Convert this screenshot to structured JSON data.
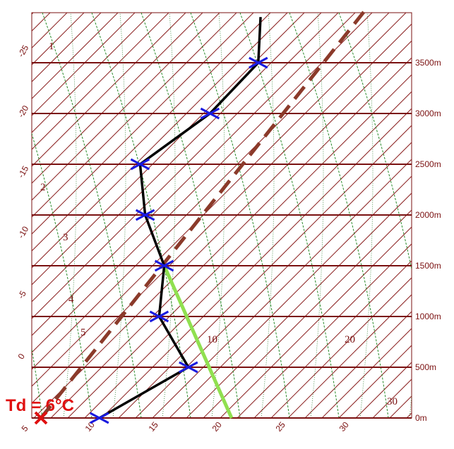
{
  "altitude_labels": [
    {
      "value": 0,
      "label": "0m"
    },
    {
      "value": 500,
      "label": "500m"
    },
    {
      "value": 1000,
      "label": "1000m"
    },
    {
      "value": 1500,
      "label": "1500m"
    },
    {
      "value": 2000,
      "label": "2000m"
    },
    {
      "value": 2500,
      "label": "2500m"
    },
    {
      "value": 3000,
      "label": "3000m"
    },
    {
      "value": 3500,
      "label": "3500m"
    }
  ],
  "temperature_labels_bottom": [
    5,
    10,
    15,
    20,
    25,
    30
  ],
  "temperature_labels_left": [
    0,
    -5,
    -10,
    -15,
    -20,
    -25
  ],
  "region_labels": [
    "1",
    "2",
    "3",
    "4",
    "5",
    "10",
    "20",
    "30"
  ],
  "annotation": "Td = 6°C",
  "sounding": {
    "altitude": [
      0,
      500,
      1000,
      1500,
      2000,
      2500,
      3000,
      3500,
      3950
    ],
    "temperature": [
      10.6,
      13.4,
      6.9,
      3.1,
      -2.6,
      -7.2,
      -5.9,
      -6.3,
      -9.9
    ]
  },
  "parcel": {
    "altitude": [
      0,
      1500
    ],
    "temperature": [
      21,
      3.1
    ]
  },
  "dewpoint_line": {
    "altitude": [
      0,
      4000
    ],
    "temperature": [
      6,
      -2.2
    ]
  }
}
